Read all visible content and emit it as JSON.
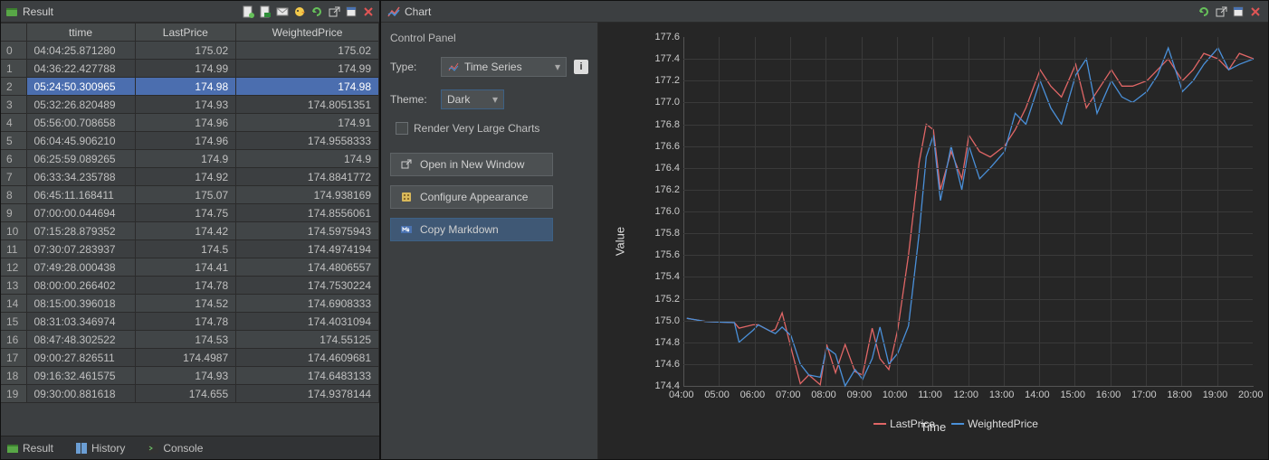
{
  "result_panel": {
    "title": "Result",
    "columns": [
      "",
      "ttime",
      "LastPrice",
      "WeightedPrice"
    ],
    "rows": [
      [
        "0",
        "04:04:25.871280",
        "175.02",
        "175.02"
      ],
      [
        "1",
        "04:36:22.427788",
        "174.99",
        "174.99"
      ],
      [
        "2",
        "05:24:50.300965",
        "174.98",
        "174.98"
      ],
      [
        "3",
        "05:32:26.820489",
        "174.93",
        "174.8051351"
      ],
      [
        "4",
        "05:56:00.708658",
        "174.96",
        "174.91"
      ],
      [
        "5",
        "06:04:45.906210",
        "174.96",
        "174.9558333"
      ],
      [
        "6",
        "06:25:59.089265",
        "174.9",
        "174.9"
      ],
      [
        "7",
        "06:33:34.235788",
        "174.92",
        "174.8841772"
      ],
      [
        "8",
        "06:45:11.168411",
        "175.07",
        "174.938169"
      ],
      [
        "9",
        "07:00:00.044694",
        "174.75",
        "174.8556061"
      ],
      [
        "10",
        "07:15:28.879352",
        "174.42",
        "174.5975943"
      ],
      [
        "11",
        "07:30:07.283937",
        "174.5",
        "174.4974194"
      ],
      [
        "12",
        "07:49:28.000438",
        "174.41",
        "174.4806557"
      ],
      [
        "13",
        "08:00:00.266402",
        "174.78",
        "174.7530224"
      ],
      [
        "14",
        "08:15:00.396018",
        "174.52",
        "174.6908333"
      ],
      [
        "15",
        "08:31:03.346974",
        "174.78",
        "174.4031094"
      ],
      [
        "16",
        "08:47:48.302522",
        "174.53",
        "174.55125"
      ],
      [
        "17",
        "09:00:27.826511",
        "174.4987",
        "174.4609681"
      ],
      [
        "18",
        "09:16:32.461575",
        "174.93",
        "174.6483133"
      ],
      [
        "19",
        "09:30:00.881618",
        "174.655",
        "174.9378144"
      ]
    ],
    "hover_row_index": 2,
    "bottom_tabs": [
      {
        "icon": "table-icon",
        "label": "Result"
      },
      {
        "icon": "history-icon",
        "label": "History"
      },
      {
        "icon": "console-icon",
        "label": "Console"
      }
    ]
  },
  "chart_panel": {
    "title": "Chart",
    "control_panel": {
      "title": "Control Panel",
      "type_label": "Type:",
      "type_value": "Time Series",
      "theme_label": "Theme:",
      "theme_value": "Dark",
      "checkbox_label": "Render Very Large Charts",
      "buttons": {
        "open_window": "Open in New Window",
        "configure": "Configure Appearance",
        "copy_md": "Copy Markdown"
      }
    },
    "chart": {
      "background": "#262626",
      "grid_color": "#3a3a3a",
      "axis_color": "#555555",
      "y_label": "Value",
      "x_label": "Time",
      "y_min": 174.4,
      "y_max": 177.6,
      "y_step": 0.2,
      "x_hours": [
        "04:00",
        "05:00",
        "06:00",
        "07:00",
        "08:00",
        "09:00",
        "10:00",
        "11:00",
        "12:00",
        "13:00",
        "14:00",
        "15:00",
        "16:00",
        "17:00",
        "18:00",
        "19:00",
        "20:00"
      ],
      "series": [
        {
          "name": "LastPrice",
          "color": "#e06666"
        },
        {
          "name": "WeightedPrice",
          "color": "#4a90d9"
        }
      ],
      "lastprice_points": [
        [
          4.07,
          175.02
        ],
        [
          4.61,
          174.99
        ],
        [
          5.41,
          174.98
        ],
        [
          5.54,
          174.93
        ],
        [
          5.93,
          174.96
        ],
        [
          6.08,
          174.96
        ],
        [
          6.43,
          174.9
        ],
        [
          6.56,
          174.92
        ],
        [
          6.75,
          175.07
        ],
        [
          7.0,
          174.75
        ],
        [
          7.26,
          174.42
        ],
        [
          7.5,
          174.5
        ],
        [
          7.82,
          174.41
        ],
        [
          8.0,
          174.78
        ],
        [
          8.25,
          174.52
        ],
        [
          8.52,
          174.78
        ],
        [
          8.8,
          174.53
        ],
        [
          9.01,
          174.5
        ],
        [
          9.28,
          174.93
        ],
        [
          9.5,
          174.65
        ],
        [
          9.75,
          174.55
        ],
        [
          10.0,
          174.92
        ],
        [
          10.3,
          175.6
        ],
        [
          10.6,
          176.45
        ],
        [
          10.8,
          176.8
        ],
        [
          11.0,
          176.75
        ],
        [
          11.2,
          176.2
        ],
        [
          11.5,
          176.55
        ],
        [
          11.8,
          176.3
        ],
        [
          12.0,
          176.7
        ],
        [
          12.3,
          176.55
        ],
        [
          12.6,
          176.5
        ],
        [
          13.0,
          176.6
        ],
        [
          13.3,
          176.75
        ],
        [
          13.6,
          176.95
        ],
        [
          14.0,
          177.3
        ],
        [
          14.3,
          177.15
        ],
        [
          14.6,
          177.05
        ],
        [
          15.0,
          177.35
        ],
        [
          15.3,
          176.95
        ],
        [
          15.6,
          177.1
        ],
        [
          16.0,
          177.3
        ],
        [
          16.3,
          177.15
        ],
        [
          16.6,
          177.15
        ],
        [
          17.0,
          177.2
        ],
        [
          17.3,
          177.3
        ],
        [
          17.6,
          177.4
        ],
        [
          18.0,
          177.2
        ],
        [
          18.3,
          177.3
        ],
        [
          18.6,
          177.45
        ],
        [
          19.0,
          177.4
        ],
        [
          19.3,
          177.3
        ],
        [
          19.6,
          177.45
        ],
        [
          20.0,
          177.4
        ]
      ],
      "weighted_points": [
        [
          4.07,
          175.02
        ],
        [
          4.61,
          174.99
        ],
        [
          5.41,
          174.98
        ],
        [
          5.54,
          174.8
        ],
        [
          5.93,
          174.91
        ],
        [
          6.08,
          174.96
        ],
        [
          6.43,
          174.9
        ],
        [
          6.56,
          174.88
        ],
        [
          6.75,
          174.94
        ],
        [
          7.0,
          174.86
        ],
        [
          7.26,
          174.6
        ],
        [
          7.5,
          174.5
        ],
        [
          7.82,
          174.48
        ],
        [
          8.0,
          174.75
        ],
        [
          8.25,
          174.69
        ],
        [
          8.52,
          174.4
        ],
        [
          8.8,
          174.55
        ],
        [
          9.01,
          174.46
        ],
        [
          9.28,
          174.65
        ],
        [
          9.5,
          174.94
        ],
        [
          9.75,
          174.6
        ],
        [
          10.0,
          174.7
        ],
        [
          10.3,
          174.95
        ],
        [
          10.6,
          175.8
        ],
        [
          10.8,
          176.5
        ],
        [
          11.0,
          176.7
        ],
        [
          11.2,
          176.1
        ],
        [
          11.5,
          176.6
        ],
        [
          11.8,
          176.2
        ],
        [
          12.0,
          176.6
        ],
        [
          12.3,
          176.3
        ],
        [
          12.6,
          176.4
        ],
        [
          13.0,
          176.55
        ],
        [
          13.3,
          176.9
        ],
        [
          13.6,
          176.8
        ],
        [
          14.0,
          177.2
        ],
        [
          14.3,
          176.95
        ],
        [
          14.6,
          176.8
        ],
        [
          15.0,
          177.25
        ],
        [
          15.3,
          177.4
        ],
        [
          15.6,
          176.9
        ],
        [
          16.0,
          177.2
        ],
        [
          16.3,
          177.05
        ],
        [
          16.6,
          177.0
        ],
        [
          17.0,
          177.1
        ],
        [
          17.3,
          177.25
        ],
        [
          17.6,
          177.5
        ],
        [
          18.0,
          177.1
        ],
        [
          18.3,
          177.2
        ],
        [
          18.6,
          177.35
        ],
        [
          19.0,
          177.5
        ],
        [
          19.3,
          177.3
        ],
        [
          19.6,
          177.35
        ],
        [
          20.0,
          177.4
        ]
      ]
    }
  }
}
